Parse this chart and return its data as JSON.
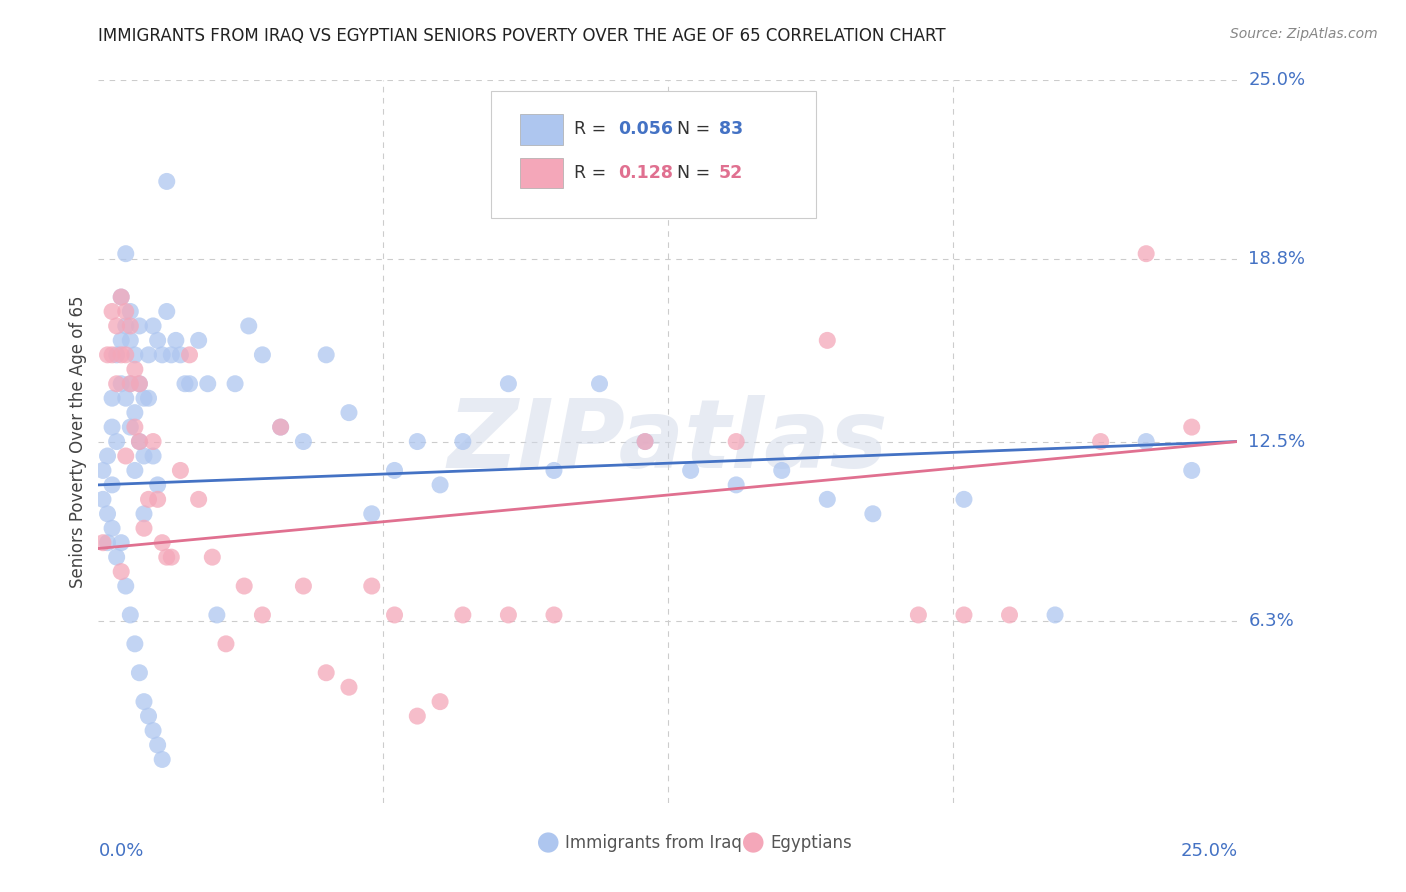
{
  "title": "IMMIGRANTS FROM IRAQ VS EGYPTIAN SENIORS POVERTY OVER THE AGE OF 65 CORRELATION CHART",
  "source": "Source: ZipAtlas.com",
  "ylabel": "Seniors Poverty Over the Age of 65",
  "ytick_labels": [
    "6.3%",
    "12.5%",
    "18.8%",
    "25.0%"
  ],
  "ytick_values": [
    0.063,
    0.125,
    0.188,
    0.25
  ],
  "xlim": [
    0.0,
    0.25
  ],
  "ylim": [
    0.0,
    0.25
  ],
  "iraq_color": "#aec6ef",
  "egypt_color": "#f4a7b9",
  "iraq_line_color": "#4472c4",
  "egypt_line_color": "#e07090",
  "title_color": "#222222",
  "axis_label_color": "#4472c4",
  "background_color": "#ffffff",
  "grid_color": "#cccccc",
  "watermark": "ZIPatlas",
  "iraq_R": 0.056,
  "iraq_N": 83,
  "egypt_R": 0.128,
  "egypt_N": 52,
  "iraq_x": [
    0.001,
    0.001,
    0.002,
    0.002,
    0.002,
    0.003,
    0.003,
    0.003,
    0.003,
    0.004,
    0.004,
    0.004,
    0.005,
    0.005,
    0.005,
    0.005,
    0.006,
    0.006,
    0.006,
    0.007,
    0.007,
    0.007,
    0.007,
    0.008,
    0.008,
    0.008,
    0.009,
    0.009,
    0.009,
    0.01,
    0.01,
    0.01,
    0.011,
    0.011,
    0.012,
    0.012,
    0.013,
    0.013,
    0.014,
    0.015,
    0.015,
    0.016,
    0.017,
    0.018,
    0.019,
    0.02,
    0.022,
    0.024,
    0.026,
    0.03,
    0.033,
    0.036,
    0.04,
    0.045,
    0.05,
    0.055,
    0.06,
    0.065,
    0.07,
    0.075,
    0.08,
    0.09,
    0.1,
    0.11,
    0.12,
    0.13,
    0.14,
    0.15,
    0.16,
    0.17,
    0.19,
    0.21,
    0.23,
    0.24,
    0.006,
    0.007,
    0.008,
    0.009,
    0.01,
    0.011,
    0.012,
    0.013,
    0.014
  ],
  "iraq_y": [
    0.115,
    0.105,
    0.12,
    0.09,
    0.1,
    0.14,
    0.13,
    0.11,
    0.095,
    0.155,
    0.125,
    0.085,
    0.175,
    0.16,
    0.145,
    0.09,
    0.19,
    0.165,
    0.14,
    0.17,
    0.16,
    0.145,
    0.13,
    0.155,
    0.135,
    0.115,
    0.165,
    0.145,
    0.125,
    0.14,
    0.12,
    0.1,
    0.155,
    0.14,
    0.165,
    0.12,
    0.16,
    0.11,
    0.155,
    0.215,
    0.17,
    0.155,
    0.16,
    0.155,
    0.145,
    0.145,
    0.16,
    0.145,
    0.065,
    0.145,
    0.165,
    0.155,
    0.13,
    0.125,
    0.155,
    0.135,
    0.1,
    0.115,
    0.125,
    0.11,
    0.125,
    0.145,
    0.115,
    0.145,
    0.125,
    0.115,
    0.11,
    0.115,
    0.105,
    0.1,
    0.105,
    0.065,
    0.125,
    0.115,
    0.075,
    0.065,
    0.055,
    0.045,
    0.035,
    0.03,
    0.025,
    0.02,
    0.015
  ],
  "egypt_x": [
    0.001,
    0.002,
    0.003,
    0.003,
    0.004,
    0.004,
    0.005,
    0.005,
    0.006,
    0.006,
    0.007,
    0.007,
    0.008,
    0.008,
    0.009,
    0.009,
    0.01,
    0.011,
    0.012,
    0.013,
    0.014,
    0.015,
    0.016,
    0.018,
    0.02,
    0.022,
    0.025,
    0.028,
    0.032,
    0.036,
    0.04,
    0.045,
    0.05,
    0.055,
    0.06,
    0.065,
    0.07,
    0.075,
    0.08,
    0.09,
    0.1,
    0.12,
    0.14,
    0.16,
    0.18,
    0.19,
    0.2,
    0.22,
    0.23,
    0.24,
    0.005,
    0.006
  ],
  "egypt_y": [
    0.09,
    0.155,
    0.17,
    0.155,
    0.165,
    0.145,
    0.175,
    0.155,
    0.17,
    0.155,
    0.165,
    0.145,
    0.15,
    0.13,
    0.145,
    0.125,
    0.095,
    0.105,
    0.125,
    0.105,
    0.09,
    0.085,
    0.085,
    0.115,
    0.155,
    0.105,
    0.085,
    0.055,
    0.075,
    0.065,
    0.13,
    0.075,
    0.045,
    0.04,
    0.075,
    0.065,
    0.03,
    0.035,
    0.065,
    0.065,
    0.065,
    0.125,
    0.125,
    0.16,
    0.065,
    0.065,
    0.065,
    0.125,
    0.19,
    0.13,
    0.08,
    0.12
  ]
}
